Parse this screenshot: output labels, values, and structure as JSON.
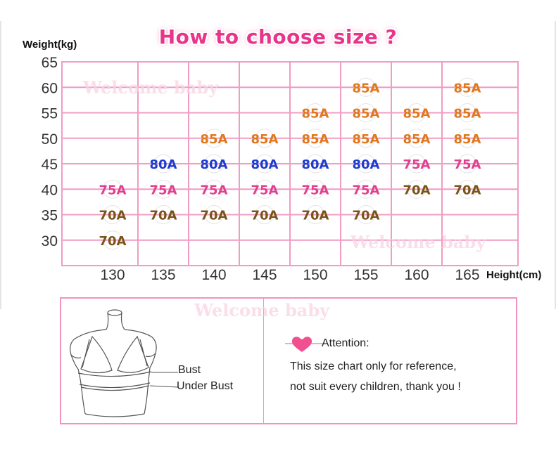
{
  "header": {
    "title": "How to choose size ?"
  },
  "watermarks": [
    "Welcome baby",
    "Welcome baby",
    "Welcome baby"
  ],
  "chart_data": {
    "type": "table",
    "ylabel": "Weight(kg)",
    "xlabel": "Height(cm)",
    "x_ticks": [
      130,
      135,
      140,
      145,
      150,
      155,
      160,
      165
    ],
    "y_ticks": [
      30,
      35,
      40,
      45,
      50,
      55,
      60,
      65
    ],
    "xlim": [
      125,
      170
    ],
    "ylim": [
      25,
      65
    ],
    "grid": true,
    "colors": {
      "70A": "#7a5418",
      "75A": "#e0408f",
      "80A": "#1e3bd0",
      "85A": "#e0781e"
    },
    "cells": [
      {
        "x": 130,
        "y": 30,
        "size": "70A"
      },
      {
        "x": 130,
        "y": 35,
        "size": "70A"
      },
      {
        "x": 135,
        "y": 35,
        "size": "70A"
      },
      {
        "x": 140,
        "y": 35,
        "size": "70A"
      },
      {
        "x": 145,
        "y": 35,
        "size": "70A"
      },
      {
        "x": 150,
        "y": 35,
        "size": "70A"
      },
      {
        "x": 155,
        "y": 35,
        "size": "70A"
      },
      {
        "x": 130,
        "y": 40,
        "size": "75A"
      },
      {
        "x": 135,
        "y": 40,
        "size": "75A"
      },
      {
        "x": 140,
        "y": 40,
        "size": "75A"
      },
      {
        "x": 145,
        "y": 40,
        "size": "75A"
      },
      {
        "x": 150,
        "y": 40,
        "size": "75A"
      },
      {
        "x": 155,
        "y": 40,
        "size": "75A"
      },
      {
        "x": 160,
        "y": 40,
        "size": "70A"
      },
      {
        "x": 165,
        "y": 40,
        "size": "70A"
      },
      {
        "x": 135,
        "y": 45,
        "size": "80A"
      },
      {
        "x": 140,
        "y": 45,
        "size": "80A"
      },
      {
        "x": 145,
        "y": 45,
        "size": "80A"
      },
      {
        "x": 150,
        "y": 45,
        "size": "80A"
      },
      {
        "x": 155,
        "y": 45,
        "size": "80A"
      },
      {
        "x": 160,
        "y": 45,
        "size": "75A"
      },
      {
        "x": 165,
        "y": 45,
        "size": "75A"
      },
      {
        "x": 140,
        "y": 50,
        "size": "85A"
      },
      {
        "x": 145,
        "y": 50,
        "size": "85A"
      },
      {
        "x": 150,
        "y": 50,
        "size": "85A"
      },
      {
        "x": 155,
        "y": 50,
        "size": "85A"
      },
      {
        "x": 160,
        "y": 50,
        "size": "85A"
      },
      {
        "x": 165,
        "y": 50,
        "size": "85A"
      },
      {
        "x": 150,
        "y": 55,
        "size": "85A"
      },
      {
        "x": 155,
        "y": 55,
        "size": "85A"
      },
      {
        "x": 160,
        "y": 55,
        "size": "85A"
      },
      {
        "x": 165,
        "y": 55,
        "size": "85A"
      },
      {
        "x": 155,
        "y": 60,
        "size": "85A"
      },
      {
        "x": 165,
        "y": 60,
        "size": "85A"
      }
    ]
  },
  "measure": {
    "bust_label": "Bust",
    "under_bust_label": "Under Bust"
  },
  "attention": {
    "heading": "Attention:",
    "line1": "This size chart only for reference,",
    "line2": "not suit every children, thank you !",
    "icon": "heart-icon",
    "accent": "#f0508f"
  }
}
